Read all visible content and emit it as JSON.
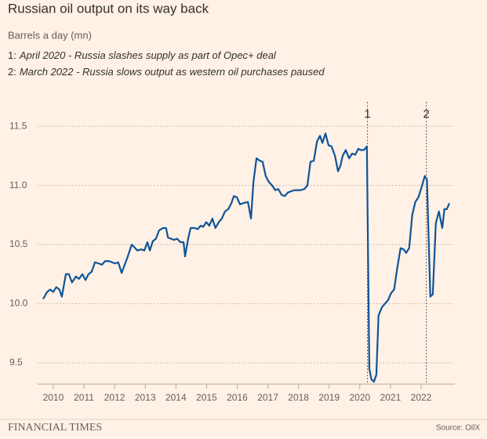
{
  "chart_data": {
    "type": "line",
    "title": "Russian oil output on its way back",
    "subtitle": "Barrels a day (mn)",
    "notes": [
      {
        "number": "1:",
        "text": "April 2020 - Russia slashes supply as part of Opec+ deal"
      },
      {
        "number": "2:",
        "text": "March 2022 - Russia slows output as western oil purchases paused"
      }
    ],
    "annotations": [
      {
        "label": "1",
        "x": 2020.25
      },
      {
        "label": "2",
        "x": 2022.17
      }
    ],
    "source": "Source: OilX",
    "brand": "FINANCIAL TIMES",
    "color": "#0f5499",
    "grid": true,
    "xlim": [
      2009.49,
      2023.1
    ],
    "xticks": [
      2010,
      2011,
      2012,
      2013,
      2014,
      2015,
      2016,
      2017,
      2018,
      2019,
      2020,
      2021,
      2022
    ],
    "ylim": [
      9.32,
      11.7
    ],
    "yticks": [
      9.5,
      {
        "value": 10,
        "label": "10.0"
      },
      10.5,
      {
        "value": 11,
        "label": "11.0"
      },
      11.5
    ],
    "x": [
      2009.67,
      2009.8,
      2009.9,
      2010,
      2010.1,
      2010.2,
      2010.28,
      2010.41,
      2010.51,
      2010.61,
      2010.74,
      2010.84,
      2010.95,
      2011.05,
      2011.15,
      2011.25,
      2011.36,
      2011.48,
      2011.59,
      2011.69,
      2011.82,
      2011.92,
      2012.02,
      2012.12,
      2012.23,
      2012.33,
      2012.43,
      2012.56,
      2012.64,
      2012.74,
      2012.87,
      2012.97,
      2013.07,
      2013.15,
      2013.25,
      2013.35,
      2013.45,
      2013.58,
      2013.68,
      2013.74,
      2013.84,
      2013.94,
      2014.04,
      2014.15,
      2014.25,
      2014.3,
      2014.4,
      2014.48,
      2014.61,
      2014.71,
      2014.81,
      2014.89,
      2014.99,
      2015.09,
      2015.19,
      2015.29,
      2015.4,
      2015.5,
      2015.6,
      2015.71,
      2015.81,
      2015.89,
      2015.99,
      2016.09,
      2016.19,
      2016.35,
      2016.45,
      2016.53,
      2016.63,
      2016.73,
      2016.83,
      2016.93,
      2017.03,
      2017.14,
      2017.24,
      2017.34,
      2017.45,
      2017.55,
      2017.65,
      2017.75,
      2017.86,
      2017.96,
      2018.06,
      2018.19,
      2018.29,
      2018.39,
      2018.5,
      2018.6,
      2018.7,
      2018.78,
      2018.88,
      2018.98,
      2019.08,
      2019.19,
      2019.29,
      2019.37,
      2019.44,
      2019.54,
      2019.65,
      2019.75,
      2019.85,
      2019.95,
      2020.03,
      2020.13,
      2020.23,
      2020.31,
      2020.38,
      2020.46,
      2020.54,
      2020.61,
      2020.72,
      2020.82,
      2020.92,
      2021.02,
      2021.12,
      2021.22,
      2021.33,
      2021.43,
      2021.51,
      2021.61,
      2021.71,
      2021.81,
      2021.91,
      2022.01,
      2022.12,
      2022.19,
      2022.3,
      2022.38,
      2022.48,
      2022.58,
      2022.69,
      2022.76,
      2022.84,
      2022.92
    ],
    "values": [
      10.04,
      10.1,
      10.12,
      10.1,
      10.14,
      10.12,
      10.06,
      10.25,
      10.25,
      10.18,
      10.23,
      10.21,
      10.25,
      10.2,
      10.25,
      10.27,
      10.35,
      10.34,
      10.33,
      10.36,
      10.36,
      10.35,
      10.34,
      10.35,
      10.26,
      10.33,
      10.4,
      10.5,
      10.48,
      10.45,
      10.46,
      10.45,
      10.52,
      10.45,
      10.53,
      10.55,
      10.62,
      10.64,
      10.64,
      10.56,
      10.55,
      10.54,
      10.55,
      10.52,
      10.52,
      10.4,
      10.55,
      10.64,
      10.64,
      10.63,
      10.66,
      10.65,
      10.69,
      10.66,
      10.72,
      10.64,
      10.69,
      10.72,
      10.78,
      10.8,
      10.85,
      10.91,
      10.9,
      10.84,
      10.85,
      10.86,
      10.72,
      11.03,
      11.23,
      11.21,
      11.2,
      11.08,
      11.03,
      11.0,
      10.96,
      10.97,
      10.92,
      10.91,
      10.94,
      10.95,
      10.96,
      10.96,
      10.96,
      10.97,
      11.0,
      11.2,
      11.21,
      11.37,
      11.42,
      11.36,
      11.44,
      11.34,
      11.33,
      11.25,
      11.12,
      11.17,
      11.25,
      11.3,
      11.23,
      11.27,
      11.26,
      11.31,
      11.3,
      11.3,
      11.33,
      9.45,
      9.36,
      9.34,
      9.4,
      9.9,
      9.97,
      10.0,
      10.03,
      10.09,
      10.12,
      10.3,
      10.47,
      10.46,
      10.43,
      10.47,
      10.75,
      10.86,
      10.9,
      10.98,
      11.08,
      11.05,
      10.06,
      10.08,
      10.68,
      10.78,
      10.64,
      10.8,
      10.8,
      10.85
    ]
  }
}
